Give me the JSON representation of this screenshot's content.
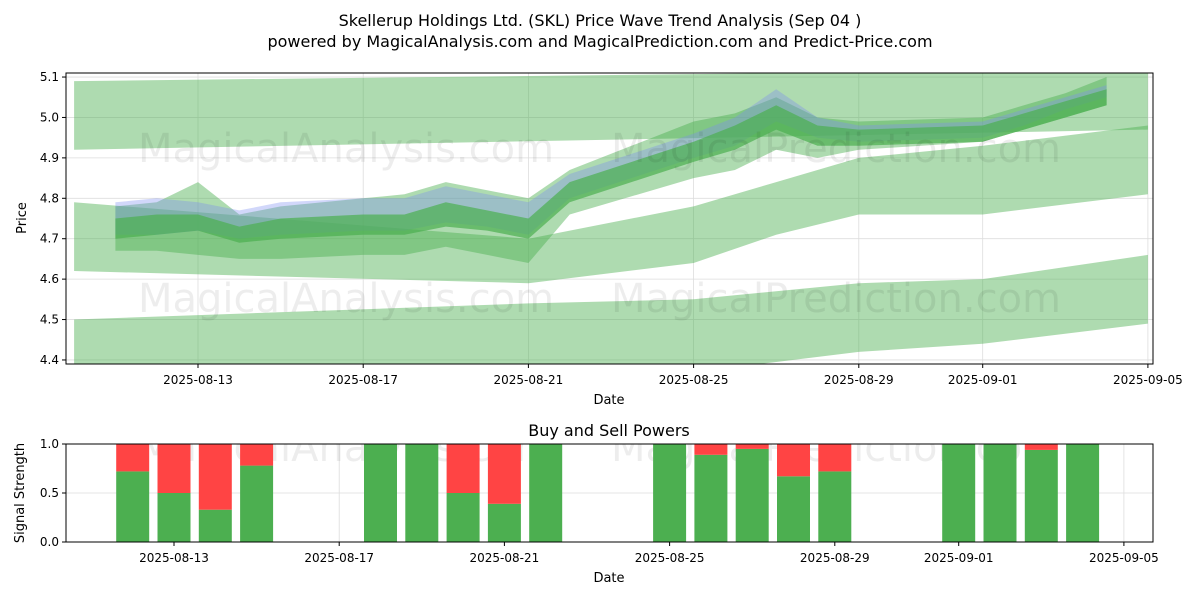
{
  "header": {
    "title": "Skellerup Holdings Ltd. (SKL) Price Wave Trend Analysis (Sep 04 )",
    "subtitle": "powered by MagicalAnalysis.com and MagicalPrediction.com and Predict-Price.com"
  },
  "watermarks": [
    "MagicalAnalysis.com",
    "MagicalPrediction.com"
  ],
  "colors": {
    "band_green": "#4caf50",
    "band_blue": "#7b8cf0",
    "buy": "#4caf50",
    "sell": "#ff4444",
    "grid": "#dddddd"
  },
  "chart_data": [
    {
      "type": "area",
      "title": "",
      "xlabel": "Date",
      "ylabel": "Price",
      "ylim": [
        4.39,
        5.11
      ],
      "x_ticks": [
        "2025-08-13",
        "2025-08-17",
        "2025-08-21",
        "2025-08-25",
        "2025-08-29",
        "2025-09-01",
        "2025-09-05"
      ],
      "y_ticks": [
        "4.4",
        "4.5",
        "4.6",
        "4.7",
        "4.8",
        "4.9",
        "5.0",
        "5.1"
      ],
      "grid": true,
      "bands": [
        {
          "name": "upper-channel",
          "color": "green",
          "x": [
            "2025-08-10",
            "2025-09-05"
          ],
          "upper": [
            5.09,
            5.12
          ],
          "lower": [
            4.92,
            4.97
          ]
        },
        {
          "name": "upper-mid-channel",
          "color": "green",
          "x": [
            "2025-08-10",
            "2025-08-21",
            "2025-08-25",
            "2025-08-27",
            "2025-08-29",
            "2025-09-01",
            "2025-09-05"
          ],
          "upper": [
            4.79,
            4.7,
            4.78,
            4.84,
            4.9,
            4.93,
            4.98
          ],
          "lower": [
            4.62,
            4.59,
            4.64,
            4.71,
            4.76,
            4.76,
            4.81
          ]
        },
        {
          "name": "lower-channel",
          "color": "green",
          "x": [
            "2025-08-10",
            "2025-08-21",
            "2025-08-25",
            "2025-08-29",
            "2025-09-01",
            "2025-09-05"
          ],
          "upper": [
            4.5,
            4.54,
            4.55,
            4.59,
            4.6,
            4.66
          ],
          "lower": [
            4.3,
            4.33,
            4.37,
            4.42,
            4.44,
            4.49
          ]
        },
        {
          "name": "price-wave-outer",
          "color": "green",
          "x": [
            "2025-08-11",
            "2025-08-12",
            "2025-08-13",
            "2025-08-14",
            "2025-08-15",
            "2025-08-17",
            "2025-08-18",
            "2025-08-19",
            "2025-08-20",
            "2025-08-21",
            "2025-08-22",
            "2025-08-25",
            "2025-08-26",
            "2025-08-27",
            "2025-08-28",
            "2025-08-29",
            "2025-09-01",
            "2025-09-02",
            "2025-09-03",
            "2025-09-04"
          ],
          "upper": [
            4.78,
            4.79,
            4.84,
            4.76,
            4.78,
            4.8,
            4.81,
            4.84,
            4.82,
            4.8,
            4.87,
            4.99,
            5.01,
            5.05,
            5.0,
            4.99,
            5.0,
            5.03,
            5.06,
            5.1
          ],
          "lower": [
            4.67,
            4.67,
            4.66,
            4.65,
            4.65,
            4.66,
            4.66,
            4.68,
            4.66,
            4.64,
            4.76,
            4.85,
            4.87,
            4.92,
            4.9,
            4.92,
            4.94,
            4.97,
            5.0,
            5.03
          ]
        },
        {
          "name": "price-wave-inner",
          "color": "blue",
          "x": [
            "2025-08-11",
            "2025-08-12",
            "2025-08-13",
            "2025-08-14",
            "2025-08-15",
            "2025-08-17",
            "2025-08-18",
            "2025-08-19",
            "2025-08-20",
            "2025-08-21",
            "2025-08-22",
            "2025-08-25",
            "2025-08-26",
            "2025-08-27",
            "2025-08-28",
            "2025-08-29",
            "2025-09-01",
            "2025-09-02",
            "2025-09-03",
            "2025-09-04"
          ],
          "upper": [
            4.79,
            4.8,
            4.79,
            4.77,
            4.79,
            4.8,
            4.8,
            4.83,
            4.81,
            4.79,
            4.86,
            4.96,
            5.0,
            5.07,
            5.0,
            4.98,
            4.99,
            5.02,
            5.05,
            5.08
          ],
          "lower": [
            4.71,
            4.71,
            4.72,
            4.7,
            4.71,
            4.72,
            4.72,
            4.74,
            4.73,
            4.71,
            4.8,
            4.9,
            4.93,
            4.99,
            4.95,
            4.94,
            4.95,
            4.98,
            5.02,
            5.05
          ]
        },
        {
          "name": "price-wave-core",
          "color": "green",
          "x": [
            "2025-08-11",
            "2025-08-12",
            "2025-08-13",
            "2025-08-14",
            "2025-08-15",
            "2025-08-17",
            "2025-08-18",
            "2025-08-19",
            "2025-08-20",
            "2025-08-21",
            "2025-08-22",
            "2025-08-25",
            "2025-08-26",
            "2025-08-27",
            "2025-08-28",
            "2025-08-29",
            "2025-09-01",
            "2025-09-02",
            "2025-09-03",
            "2025-09-04"
          ],
          "upper": [
            4.75,
            4.76,
            4.76,
            4.73,
            4.75,
            4.76,
            4.76,
            4.79,
            4.77,
            4.75,
            4.84,
            4.94,
            4.98,
            5.03,
            4.98,
            4.97,
            4.98,
            5.01,
            5.04,
            5.07
          ],
          "lower": [
            4.7,
            4.71,
            4.72,
            4.69,
            4.7,
            4.71,
            4.71,
            4.73,
            4.72,
            4.7,
            4.79,
            4.89,
            4.92,
            4.97,
            4.93,
            4.93,
            4.94,
            4.97,
            5.0,
            5.03
          ]
        }
      ]
    },
    {
      "type": "bar",
      "title": "Buy and Sell Powers",
      "xlabel": "Date",
      "ylabel": "Signal Strength",
      "ylim": [
        0,
        1
      ],
      "y_ticks": [
        "0.0",
        "0.5",
        "1.0"
      ],
      "x_ticks": [
        "2025-08-13",
        "2025-08-17",
        "2025-08-21",
        "2025-08-25",
        "2025-08-29",
        "2025-09-01",
        "2025-09-05"
      ],
      "categories": [
        "2025-08-12",
        "2025-08-13",
        "2025-08-14",
        "2025-08-15",
        "2025-08-18",
        "2025-08-19",
        "2025-08-20",
        "2025-08-21",
        "2025-08-22",
        "2025-08-25",
        "2025-08-26",
        "2025-08-27",
        "2025-08-28",
        "2025-08-29",
        "2025-09-01",
        "2025-09-02",
        "2025-09-03",
        "2025-09-04"
      ],
      "series": [
        {
          "name": "Buy",
          "color": "green",
          "values": [
            0.72,
            0.5,
            0.33,
            0.78,
            1.0,
            1.0,
            0.5,
            0.39,
            1.0,
            1.0,
            0.89,
            0.95,
            0.67,
            0.72,
            1.0,
            1.0,
            0.94,
            1.0
          ]
        },
        {
          "name": "Sell",
          "color": "red",
          "values": [
            0.28,
            0.5,
            0.67,
            0.22,
            0.0,
            0.0,
            0.5,
            0.61,
            0.0,
            0.0,
            0.11,
            0.05,
            0.33,
            0.28,
            0.0,
            0.0,
            0.06,
            0.0
          ]
        }
      ]
    }
  ]
}
